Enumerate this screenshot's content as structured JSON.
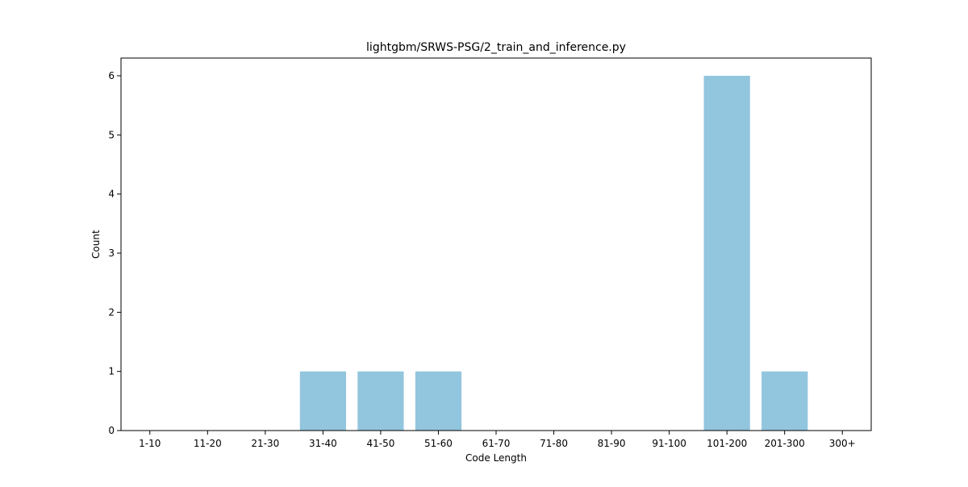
{
  "chart_data": {
    "type": "bar",
    "title": "lightgbm/SRWS-PSG/2_train_and_inference.py",
    "xlabel": "Code Length",
    "ylabel": "Count",
    "categories": [
      "1-10",
      "11-20",
      "21-30",
      "31-40",
      "41-50",
      "51-60",
      "61-70",
      "71-80",
      "81-90",
      "91-100",
      "101-200",
      "201-300",
      "300+"
    ],
    "values": [
      0,
      0,
      0,
      1,
      1,
      1,
      0,
      0,
      0,
      0,
      6,
      1,
      0
    ],
    "ylim": [
      0,
      6.3
    ],
    "yticks": [
      0,
      1,
      2,
      3,
      4,
      5,
      6
    ],
    "grid": false,
    "bar_color": "#92c5de"
  }
}
